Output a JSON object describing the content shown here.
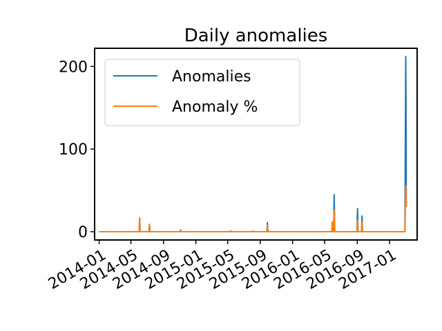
{
  "chart_data": {
    "type": "line",
    "title": "Daily anomalies",
    "xlabel": "",
    "ylabel": "",
    "x_range": [
      "2013-12-15",
      "2017-04-15"
    ],
    "ylim": [
      -10,
      222
    ],
    "x_ticks": [
      "2014-01",
      "2014-05",
      "2014-09",
      "2015-01",
      "2015-05",
      "2015-09",
      "2016-01",
      "2016-05",
      "2016-09",
      "2017-01"
    ],
    "y_ticks": [
      0,
      100,
      200
    ],
    "legend": {
      "placement": "upper-left"
    },
    "grid": false,
    "series": [
      {
        "name": "Anomalies",
        "color": "#1f77b4",
        "points": [
          [
            "2014-01-01",
            0
          ],
          [
            "2014-06-01",
            0
          ],
          [
            "2014-06-03",
            16
          ],
          [
            "2014-06-05",
            0
          ],
          [
            "2014-07-08",
            0
          ],
          [
            "2014-07-10",
            9
          ],
          [
            "2014-07-12",
            0
          ],
          [
            "2014-11-03",
            0
          ],
          [
            "2014-11-05",
            2
          ],
          [
            "2014-11-07",
            0
          ],
          [
            "2015-05-10",
            0
          ],
          [
            "2015-05-12",
            1
          ],
          [
            "2015-05-14",
            0
          ],
          [
            "2015-08-03",
            0
          ],
          [
            "2015-08-05",
            1
          ],
          [
            "2015-08-07",
            0
          ],
          [
            "2015-09-26",
            0
          ],
          [
            "2015-09-28",
            11
          ],
          [
            "2015-09-30",
            0
          ],
          [
            "2016-05-28",
            0
          ],
          [
            "2016-05-30",
            11
          ],
          [
            "2016-06-01",
            0
          ],
          [
            "2016-06-04",
            0
          ],
          [
            "2016-06-06",
            45
          ],
          [
            "2016-06-08",
            0
          ],
          [
            "2016-08-31",
            0
          ],
          [
            "2016-09-02",
            28
          ],
          [
            "2016-09-04",
            0
          ],
          [
            "2016-09-17",
            0
          ],
          [
            "2016-09-19",
            19
          ],
          [
            "2016-09-21",
            0
          ],
          [
            "2017-02-28",
            0
          ],
          [
            "2017-03-03",
            212
          ],
          [
            "2017-03-04",
            160
          ],
          [
            "2017-03-05",
            30
          ]
        ]
      },
      {
        "name": "Anomaly %",
        "color": "#ff7f0e",
        "points": [
          [
            "2014-01-01",
            0
          ],
          [
            "2014-06-01",
            0
          ],
          [
            "2014-06-03",
            17
          ],
          [
            "2014-06-05",
            0
          ],
          [
            "2014-07-08",
            0
          ],
          [
            "2014-07-10",
            9
          ],
          [
            "2014-07-12",
            0
          ],
          [
            "2014-11-03",
            0
          ],
          [
            "2014-11-05",
            1
          ],
          [
            "2014-11-07",
            0
          ],
          [
            "2015-05-10",
            0
          ],
          [
            "2015-05-12",
            1
          ],
          [
            "2015-05-14",
            0
          ],
          [
            "2015-08-03",
            0
          ],
          [
            "2015-08-05",
            1
          ],
          [
            "2015-08-07",
            0
          ],
          [
            "2015-09-26",
            0
          ],
          [
            "2015-09-28",
            8
          ],
          [
            "2015-09-30",
            0
          ],
          [
            "2016-05-28",
            0
          ],
          [
            "2016-05-30",
            12
          ],
          [
            "2016-06-01",
            0
          ],
          [
            "2016-06-04",
            0
          ],
          [
            "2016-06-06",
            26
          ],
          [
            "2016-06-08",
            0
          ],
          [
            "2016-08-31",
            0
          ],
          [
            "2016-09-02",
            14
          ],
          [
            "2016-09-04",
            0
          ],
          [
            "2016-09-17",
            0
          ],
          [
            "2016-09-19",
            12
          ],
          [
            "2016-09-21",
            0
          ],
          [
            "2017-02-28",
            0
          ],
          [
            "2017-03-03",
            56
          ],
          [
            "2017-03-04",
            40
          ],
          [
            "2017-03-05",
            30
          ]
        ]
      }
    ]
  }
}
